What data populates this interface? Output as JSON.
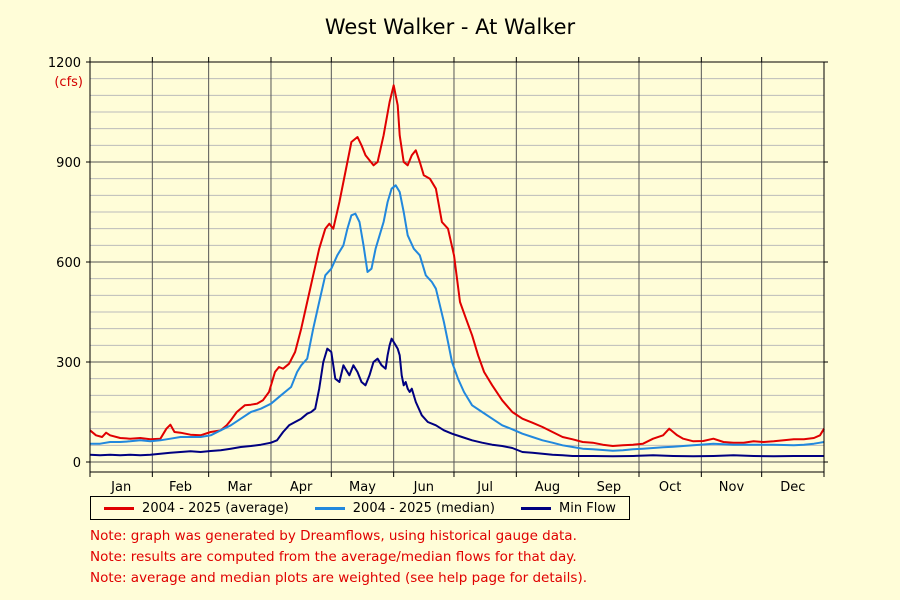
{
  "chart_data": {
    "type": "line",
    "title": "West Walker - At Walker",
    "y_unit": "(cfs)",
    "ylim": [
      0,
      1200
    ],
    "yticks": [
      0,
      300,
      600,
      900,
      1200
    ],
    "xlim": [
      0,
      365
    ],
    "months": [
      {
        "label": "Jan",
        "start": 0,
        "days": 31
      },
      {
        "label": "Feb",
        "start": 31,
        "days": 28
      },
      {
        "label": "Mar",
        "start": 59,
        "days": 31
      },
      {
        "label": "Apr",
        "start": 90,
        "days": 30
      },
      {
        "label": "May",
        "start": 120,
        "days": 31
      },
      {
        "label": "Jun",
        "start": 151,
        "days": 30
      },
      {
        "label": "Jul",
        "start": 181,
        "days": 31
      },
      {
        "label": "Aug",
        "start": 212,
        "days": 31
      },
      {
        "label": "Sep",
        "start": 243,
        "days": 30
      },
      {
        "label": "Oct",
        "start": 273,
        "days": 31
      },
      {
        "label": "Nov",
        "start": 304,
        "days": 30
      },
      {
        "label": "Dec",
        "start": 334,
        "days": 31
      }
    ],
    "grid": true,
    "legend_position": "bottom-left",
    "series": [
      {
        "name": "2004 - 2025 (average)",
        "color": "#e00000",
        "x": [
          0,
          3,
          6,
          8,
          10,
          15,
          20,
          25,
          30,
          35,
          38,
          40,
          42,
          45,
          50,
          55,
          60,
          65,
          68,
          70,
          73,
          77,
          80,
          83,
          86,
          89,
          92,
          94,
          96,
          99,
          102,
          105,
          108,
          111,
          114,
          117,
          119,
          121,
          124,
          127,
          130,
          133,
          135,
          137,
          139,
          141,
          143,
          146,
          149,
          151,
          153,
          154,
          156,
          158,
          160,
          162,
          164,
          166,
          169,
          172,
          175,
          178,
          181,
          184,
          187,
          190,
          193,
          196,
          200,
          205,
          210,
          215,
          220,
          225,
          230,
          235,
          240,
          245,
          250,
          255,
          260,
          265,
          270,
          275,
          280,
          285,
          288,
          290,
          292,
          295,
          300,
          305,
          310,
          315,
          320,
          325,
          330,
          335,
          340,
          345,
          350,
          355,
          360,
          363,
          365
        ],
        "y": [
          95,
          80,
          75,
          88,
          80,
          72,
          70,
          72,
          68,
          70,
          100,
          112,
          90,
          88,
          82,
          80,
          90,
          95,
          110,
          125,
          150,
          170,
          172,
          175,
          185,
          210,
          270,
          285,
          280,
          295,
          330,
          400,
          480,
          560,
          640,
          700,
          715,
          700,
          780,
          870,
          960,
          975,
          950,
          920,
          905,
          890,
          900,
          980,
          1080,
          1130,
          1070,
          980,
          900,
          890,
          920,
          935,
          900,
          860,
          850,
          820,
          720,
          700,
          620,
          480,
          430,
          380,
          320,
          270,
          230,
          185,
          150,
          130,
          118,
          105,
          90,
          75,
          68,
          60,
          58,
          52,
          48,
          50,
          52,
          55,
          70,
          80,
          100,
          90,
          80,
          70,
          62,
          63,
          70,
          60,
          58,
          58,
          62,
          60,
          62,
          65,
          68,
          68,
          72,
          80,
          100
        ]
      },
      {
        "name": "2004 - 2025 (median)",
        "color": "#2288dd",
        "x": [
          0,
          5,
          10,
          15,
          20,
          25,
          30,
          35,
          40,
          45,
          50,
          55,
          60,
          65,
          70,
          75,
          80,
          85,
          90,
          95,
          100,
          103,
          105,
          108,
          111,
          114,
          117,
          120,
          123,
          126,
          128,
          130,
          132,
          134,
          136,
          138,
          140,
          142,
          144,
          146,
          148,
          150,
          152,
          154,
          156,
          158,
          161,
          164,
          167,
          170,
          172,
          174,
          176,
          178,
          180,
          183,
          186,
          190,
          195,
          200,
          205,
          210,
          215,
          220,
          225,
          230,
          235,
          240,
          245,
          250,
          255,
          260,
          265,
          270,
          275,
          280,
          285,
          290,
          295,
          300,
          310,
          320,
          330,
          340,
          350,
          355,
          360,
          363,
          365
        ],
        "y": [
          55,
          55,
          60,
          60,
          62,
          65,
          62,
          65,
          70,
          75,
          75,
          75,
          80,
          95,
          110,
          130,
          150,
          160,
          175,
          200,
          225,
          270,
          290,
          310,
          400,
          480,
          560,
          580,
          620,
          650,
          700,
          740,
          745,
          720,
          650,
          570,
          580,
          640,
          680,
          720,
          780,
          820,
          830,
          810,
          750,
          680,
          640,
          620,
          560,
          540,
          520,
          470,
          420,
          360,
          300,
          250,
          210,
          170,
          150,
          130,
          110,
          98,
          85,
          75,
          65,
          58,
          50,
          45,
          40,
          38,
          36,
          34,
          35,
          38,
          40,
          42,
          44,
          46,
          48,
          50,
          55,
          52,
          52,
          52,
          50,
          52,
          55,
          58,
          60
        ]
      },
      {
        "name": "Min Flow",
        "color": "#000080",
        "x": [
          0,
          5,
          10,
          15,
          20,
          25,
          30,
          35,
          40,
          45,
          50,
          55,
          60,
          65,
          70,
          75,
          80,
          85,
          90,
          93,
          96,
          99,
          102,
          105,
          108,
          110,
          112,
          114,
          116,
          118,
          120,
          122,
          124,
          126,
          127,
          129,
          131,
          133,
          135,
          137,
          139,
          141,
          143,
          145,
          147,
          148,
          149,
          150,
          151,
          152,
          153,
          154,
          155,
          156,
          157,
          158,
          159,
          160,
          162,
          165,
          168,
          172,
          176,
          180,
          185,
          190,
          195,
          200,
          205,
          210,
          215,
          220,
          225,
          230,
          235,
          240,
          250,
          260,
          270,
          280,
          290,
          300,
          310,
          320,
          330,
          340,
          350,
          360,
          365
        ],
        "y": [
          22,
          20,
          22,
          20,
          22,
          20,
          22,
          25,
          28,
          30,
          32,
          30,
          33,
          35,
          40,
          45,
          48,
          52,
          58,
          65,
          90,
          110,
          120,
          130,
          145,
          150,
          160,
          220,
          300,
          340,
          330,
          250,
          240,
          290,
          280,
          260,
          290,
          270,
          240,
          230,
          260,
          300,
          310,
          290,
          280,
          320,
          350,
          370,
          360,
          350,
          340,
          320,
          260,
          230,
          240,
          220,
          210,
          220,
          180,
          140,
          120,
          110,
          95,
          85,
          75,
          65,
          58,
          52,
          48,
          42,
          30,
          28,
          25,
          22,
          20,
          18,
          18,
          17,
          18,
          20,
          18,
          17,
          18,
          20,
          18,
          17,
          18,
          18,
          18
        ]
      }
    ]
  },
  "notes": [
    "Note: graph was generated by Dreamflows, using historical gauge data.",
    "Note: results are computed from the average/median flows for that day.",
    "Note: average and median plots are weighted (see help page for details)."
  ]
}
